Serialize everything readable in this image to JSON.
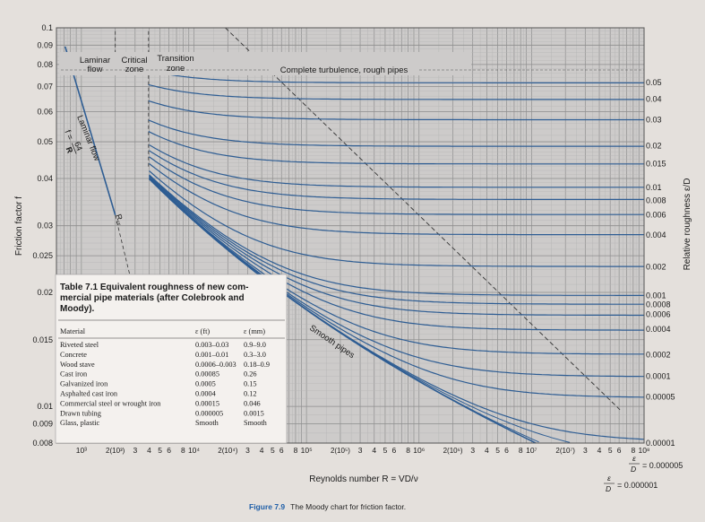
{
  "caption": {
    "figure_label": "Figure 7.9",
    "text": "The Moody chart for friction factor."
  },
  "colors": {
    "curve": "#2e5d93",
    "grid_dark": "#8e8e8e",
    "grid_light": "#b6b6b6",
    "plot_bg": "#cdcbca",
    "table_bg": "#f4f1ee",
    "text": "#1a1a1a",
    "caption_accent": "#1f5fa8"
  },
  "table": {
    "title_lines": [
      "Table 7.1   Equivalent roughness of new com-",
      "mercial pipe materials (after Colebrook and",
      "Moody)."
    ],
    "headers": [
      "Material",
      "ε (ft)",
      "ε (mm)"
    ],
    "rows": [
      [
        "Riveted steel",
        "0.003–0.03",
        "0.9–9.0"
      ],
      [
        "Concrete",
        "0.001–0.01",
        "0.3–3.0"
      ],
      [
        "Wood stave",
        "0.0006–0.003",
        "0.18–0.9"
      ],
      [
        "Cast iron",
        "0.00085",
        "0.26"
      ],
      [
        "Galvanized iron",
        "0.0005",
        "0.15"
      ],
      [
        "Asphalted cast iron",
        "0.0004",
        "0.12"
      ],
      [
        "Commercial steel or wrought iron",
        "0.00015",
        "0.046"
      ],
      [
        "Drawn tubing",
        "0.000005",
        "0.0015"
      ],
      [
        "Glass, plastic",
        "Smooth",
        "Smooth"
      ]
    ]
  },
  "chart_data": {
    "type": "line",
    "title": "",
    "xlabel": "Reynolds number R = VD/ν",
    "ylabel": "Friction factor f",
    "y2label": "Relative roughness ε/D",
    "x_scale": "log",
    "y_scale": "log",
    "xlim": [
      600,
      100000000
    ],
    "ylim": [
      0.008,
      0.1
    ],
    "grid": true,
    "y_ticks": [
      {
        "value": 0.1,
        "label": "0.1"
      },
      {
        "value": 0.09,
        "label": "0.09"
      },
      {
        "value": 0.08,
        "label": "0.08"
      },
      {
        "value": 0.07,
        "label": "0.07"
      },
      {
        "value": 0.06,
        "label": "0.06"
      },
      {
        "value": 0.05,
        "label": "0.05"
      },
      {
        "value": 0.04,
        "label": "0.04"
      },
      {
        "value": 0.03,
        "label": "0.03"
      },
      {
        "value": 0.025,
        "label": "0.025"
      },
      {
        "value": 0.02,
        "label": "0.02"
      },
      {
        "value": 0.015,
        "label": "0.015"
      },
      {
        "value": 0.01,
        "label": "0.01"
      },
      {
        "value": 0.009,
        "label": "0.009"
      },
      {
        "value": 0.008,
        "label": "0.008"
      }
    ],
    "x_ticks": [
      {
        "value": 1000,
        "label": "10³"
      },
      {
        "value": 2000,
        "label": "2(10³)"
      },
      {
        "value": 3000,
        "label": "3"
      },
      {
        "value": 4000,
        "label": "4"
      },
      {
        "value": 5000,
        "label": "5"
      },
      {
        "value": 6000,
        "label": "6"
      },
      {
        "value": 8000,
        "label": "8"
      },
      {
        "value": 10000,
        "label": "10⁴"
      },
      {
        "value": 20000,
        "label": "2(10⁴)"
      },
      {
        "value": 30000,
        "label": "3"
      },
      {
        "value": 40000,
        "label": "4"
      },
      {
        "value": 50000,
        "label": "5"
      },
      {
        "value": 60000,
        "label": "6"
      },
      {
        "value": 80000,
        "label": "8"
      },
      {
        "value": 100000,
        "label": "10⁵"
      },
      {
        "value": 200000,
        "label": "2(10⁵)"
      },
      {
        "value": 300000,
        "label": "3"
      },
      {
        "value": 400000,
        "label": "4"
      },
      {
        "value": 500000,
        "label": "5"
      },
      {
        "value": 600000,
        "label": "6"
      },
      {
        "value": 800000,
        "label": "8"
      },
      {
        "value": 1000000,
        "label": "10⁶"
      },
      {
        "value": 2000000,
        "label": "2(10⁶)"
      },
      {
        "value": 3000000,
        "label": "3"
      },
      {
        "value": 4000000,
        "label": "4"
      },
      {
        "value": 5000000,
        "label": "5"
      },
      {
        "value": 6000000,
        "label": "6"
      },
      {
        "value": 8000000,
        "label": "8"
      },
      {
        "value": 10000000,
        "label": "10⁷"
      },
      {
        "value": 20000000,
        "label": "2(10⁷)"
      },
      {
        "value": 30000000,
        "label": "3"
      },
      {
        "value": 40000000,
        "label": "4"
      },
      {
        "value": 50000000,
        "label": "5"
      },
      {
        "value": 60000000,
        "label": "6"
      },
      {
        "value": 80000000,
        "label": "8"
      },
      {
        "value": 100000000,
        "label": "10⁸"
      }
    ],
    "relative_roughness_labels": [
      "0.05",
      "0.04",
      "0.03",
      "0.02",
      "0.015",
      "0.01",
      "0.008",
      "0.006",
      "0.004",
      "0.002",
      "0.001",
      "0.0008",
      "0.0006",
      "0.0004",
      "0.0002",
      "0.0001",
      "0.00005",
      "0.00001"
    ],
    "roughness_curves": [
      {
        "eps": 0.05,
        "f_full": 0.0716
      },
      {
        "eps": 0.04,
        "f_full": 0.0648
      },
      {
        "eps": 0.03,
        "f_full": 0.0571
      },
      {
        "eps": 0.02,
        "f_full": 0.0488
      },
      {
        "eps": 0.015,
        "f_full": 0.0438
      },
      {
        "eps": 0.01,
        "f_full": 0.0379
      },
      {
        "eps": 0.008,
        "f_full": 0.035
      },
      {
        "eps": 0.006,
        "f_full": 0.0321
      },
      {
        "eps": 0.004,
        "f_full": 0.0284
      },
      {
        "eps": 0.002,
        "f_full": 0.0234
      },
      {
        "eps": 0.001,
        "f_full": 0.0196
      },
      {
        "eps": 0.0008,
        "f_full": 0.0186
      },
      {
        "eps": 0.0006,
        "f_full": 0.0175
      },
      {
        "eps": 0.0004,
        "f_full": 0.016
      },
      {
        "eps": 0.0002,
        "f_full": 0.0137
      },
      {
        "eps": 0.0001,
        "f_full": 0.012
      },
      {
        "eps": 5e-05,
        "f_full": 0.0106
      },
      {
        "eps": 1e-05,
        "f_full": 0.008
      }
    ],
    "laminar": {
      "equation": "f = 64/R",
      "R_range": [
        640,
        2000
      ]
    },
    "annotations": {
      "laminar_zone": [
        "Laminar",
        "flow"
      ],
      "critical_zone": [
        "Critical",
        "zone"
      ],
      "transition_zone": [
        "Transition",
        "zone"
      ],
      "complete_turbulence": "Complete turbulence, rough pipes",
      "laminar_flow_label": "Laminar flow",
      "laminar_eq_f": "f =",
      "laminar_eq_num": "64",
      "laminar_eq_den": "R",
      "critical_R": "R",
      "critical_R_sub": "cr",
      "smooth_pipes": "Smooth pipes",
      "eps_d_1": "= 0.000005",
      "eps_d_2": "= 0.000001"
    }
  }
}
